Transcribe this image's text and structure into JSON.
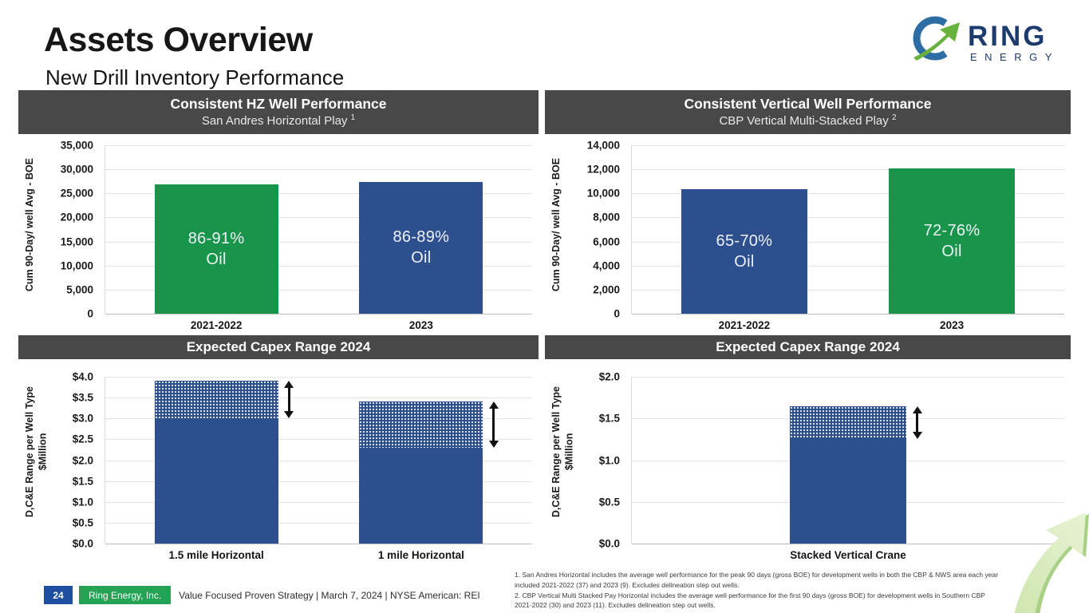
{
  "slide": {
    "title": "Assets Overview",
    "subtitle": "New Drill Inventory Performance"
  },
  "logo": {
    "brand": "RING",
    "brand_sub": "ENERGY"
  },
  "colors": {
    "bar_green": "#18954b",
    "bar_blue": "#2e4f8e",
    "header_bg": "#484848",
    "footer_page_bg": "#1e4fa1",
    "footer_brand_bg": "#25a354",
    "logo_navy": "#1e3b6e",
    "logo_green": "#6ab23e"
  },
  "chart_data": [
    {
      "type": "bar",
      "panel_title": "Consistent HZ Well Performance",
      "panel_subtitle": "San Andres Horizontal Play",
      "footnote_ref": "1",
      "ylabel": "Cum 90-Day/ well Avg - BOE",
      "ylim": [
        0,
        35000
      ],
      "ytick_values": [
        0,
        5000,
        10000,
        15000,
        20000,
        25000,
        30000,
        35000
      ],
      "ytick_labels": [
        "0",
        "5,000",
        "10,000",
        "15,000",
        "20,000",
        "25,000",
        "30,000",
        "35,000"
      ],
      "categories": [
        "2021-2022",
        "2023"
      ],
      "grid": true,
      "legend": "none",
      "bars": [
        {
          "category": "2021-2022",
          "value": 26900,
          "color": "#18954b",
          "label": "86-91%",
          "label_line2": "Oil"
        },
        {
          "category": "2023",
          "value": 27400,
          "color": "#2e4f8e",
          "label": "86-89%",
          "label_line2": "Oil"
        }
      ]
    },
    {
      "type": "bar",
      "panel_title": "Consistent Vertical Well Performance",
      "panel_subtitle": "CBP Vertical Multi-Stacked Play",
      "footnote_ref": "2",
      "ylabel": "Cum 90-Day/ well Avg - BOE",
      "ylim": [
        0,
        14000
      ],
      "ytick_values": [
        0,
        2000,
        4000,
        6000,
        8000,
        10000,
        12000,
        14000
      ],
      "ytick_labels": [
        "0",
        "2,000",
        "4,000",
        "6,000",
        "8,000",
        "10,000",
        "12,000",
        "14,000"
      ],
      "categories": [
        "2021-2022",
        "2023"
      ],
      "grid": true,
      "legend": "none",
      "bars": [
        {
          "category": "2021-2022",
          "value": 10350,
          "color": "#2e4f8e",
          "label": "65-70%",
          "label_line2": "Oil"
        },
        {
          "category": "2023",
          "value": 12100,
          "color": "#18954b",
          "label": "72-76%",
          "label_line2": "Oil"
        }
      ]
    },
    {
      "type": "stacked-bar",
      "panel_title": "Expected Capex Range 2024",
      "ylabel": "D,C&E Range per Well Type",
      "ylabel_line2": "$Million",
      "ylim": [
        0,
        4
      ],
      "ytick_values": [
        0,
        0.5,
        1.0,
        1.5,
        2.0,
        2.5,
        3.0,
        3.5,
        4.0
      ],
      "ytick_labels": [
        "$0.0",
        "$0.5",
        "$1.0",
        "$1.5",
        "$2.0",
        "$2.5",
        "$3.0",
        "$3.5",
        "$4.0"
      ],
      "categories": [
        "1.5 mile Horizontal",
        "1 mile Horizontal"
      ],
      "grid": true,
      "legend": "none",
      "bars": [
        {
          "category": "1.5 mile Horizontal",
          "solid_value": 3.0,
          "range_top_value": 3.9,
          "color": "#2e4f8e",
          "range_arrow": true
        },
        {
          "category": "1 mile Horizontal",
          "solid_value": 2.3,
          "range_top_value": 3.4,
          "color": "#2e4f8e",
          "range_arrow": true
        }
      ]
    },
    {
      "type": "stacked-bar",
      "panel_title": "Expected Capex Range 2024",
      "ylabel": "D,C&E Range per Well Type",
      "ylabel_line2": "$Million",
      "ylim": [
        0,
        2
      ],
      "ytick_values": [
        0,
        0.5,
        1.0,
        1.5,
        2.0
      ],
      "ytick_labels": [
        "$0.0",
        "$0.5",
        "$1.0",
        "$1.5",
        "$2.0"
      ],
      "categories": [
        "Stacked Vertical Crane"
      ],
      "grid": true,
      "legend": "none",
      "bars": [
        {
          "category": "Stacked Vertical Crane",
          "solid_value": 1.25,
          "range_top_value": 1.65,
          "color": "#2e4f8e",
          "range_arrow": true
        }
      ]
    }
  ],
  "footer": {
    "page_number": "24",
    "brand": "Ring Energy, Inc.",
    "text": "Value Focused Proven Strategy  | March 7, 2024 |  NYSE American: REI"
  },
  "footnotes": [
    "1. San Andres Horizontal includes the average well performance for the peak 90 days (gross BOE) for development wells in both the CBP & NWS area each year included 2021-2022 (37) and 2023 (9). Excludes delineation step out wells.",
    "2. CBP Vertical Multi Stacked Pay Horizontal includes the average well performance for the first 90 days (gross BOE) for development wells in Southern CBP 2021-2022 (30) and 2023 (11). Excludes delineation step out wells."
  ]
}
